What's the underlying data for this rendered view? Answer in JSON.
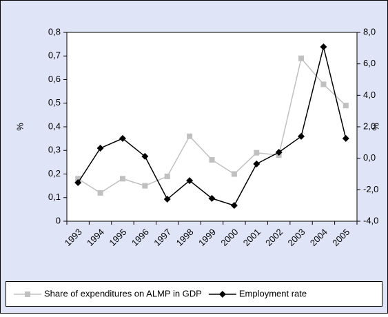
{
  "chart_data": {
    "type": "line",
    "categories": [
      "1993",
      "1994",
      "1995",
      "1996",
      "1997",
      "1998",
      "1999",
      "2000",
      "2001",
      "2002",
      "2003",
      "2004",
      "2005"
    ],
    "series": [
      {
        "name": "Share of expenditures on ALMP in GDP",
        "color": "#c0c0c0",
        "marker": "square",
        "values": [
          0.18,
          0.12,
          0.18,
          0.15,
          0.19,
          0.36,
          0.26,
          0.2,
          0.29,
          0.28,
          0.69,
          0.58,
          0.49
        ]
      },
      {
        "name": "Employment rate",
        "color": "#000000",
        "marker": "diamond",
        "axis": "y2",
        "values": [
          -1.55,
          0.64,
          1.26,
          0.12,
          -2.6,
          -1.42,
          -2.55,
          -3.0,
          -0.36,
          0.38,
          1.39,
          7.08,
          1.26
        ]
      }
    ],
    "ylabel": "%",
    "y2label": "%",
    "ylim": [
      0,
      0.8
    ],
    "yticks": [
      0,
      {
        "value": 0.1,
        "label": "0,1"
      },
      {
        "value": 0.2,
        "label": "0,2"
      },
      {
        "value": 0.3,
        "label": "0,3"
      },
      {
        "value": 0.4,
        "label": "0,4"
      },
      {
        "value": 0.5,
        "label": "0,5"
      },
      {
        "value": 0.6,
        "label": "0,6"
      },
      {
        "value": 0.7,
        "label": "0,7"
      },
      {
        "value": 0.8,
        "label": "0,8"
      }
    ],
    "y2lim": [
      -4,
      8
    ],
    "y2ticks": [
      {
        "value": -4,
        "label": "-4,0"
      },
      {
        "value": -2,
        "label": "-2,0"
      },
      {
        "value": 0,
        "label": "0,0"
      },
      {
        "value": 2,
        "label": "2,0"
      },
      {
        "value": 4,
        "label": "4,0"
      },
      {
        "value": 6,
        "label": "6,0"
      },
      {
        "value": 8,
        "label": "8,0"
      }
    ],
    "grid": false,
    "legend": "bottom"
  }
}
